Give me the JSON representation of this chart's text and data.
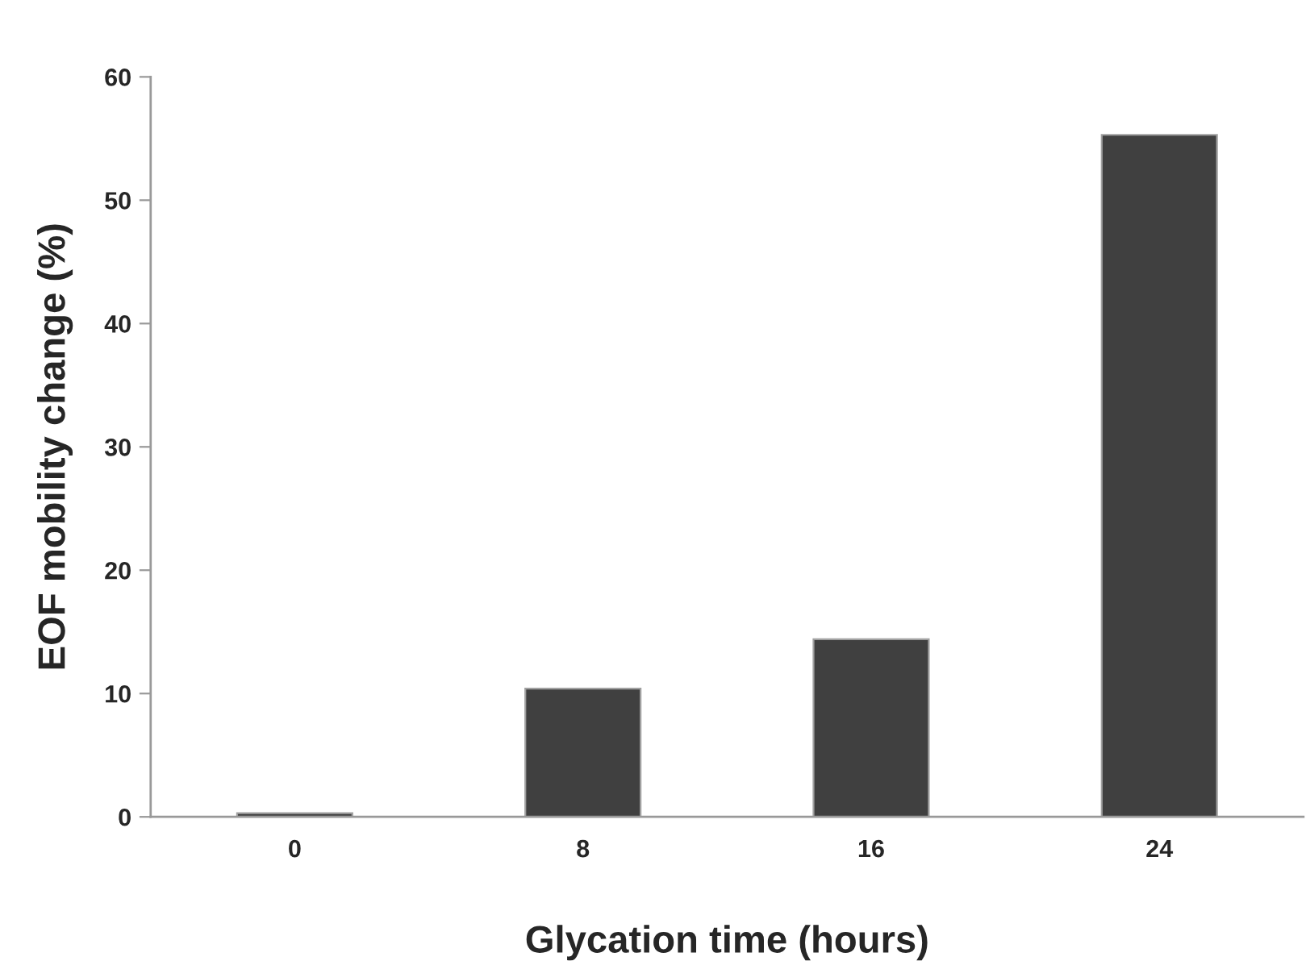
{
  "chart_data": {
    "type": "bar",
    "xlabel": "Glycation time (hours)",
    "ylabel": "EOF mobility change (%)",
    "categories": [
      "0",
      "8",
      "16",
      "24"
    ],
    "values": [
      0.3,
      10.4,
      14.4,
      55.3
    ],
    "color": "#404040",
    "ylim": [
      0,
      60
    ],
    "yticks": [
      0,
      10,
      20,
      30,
      40,
      50,
      60
    ],
    "grid": false,
    "legend": false
  }
}
